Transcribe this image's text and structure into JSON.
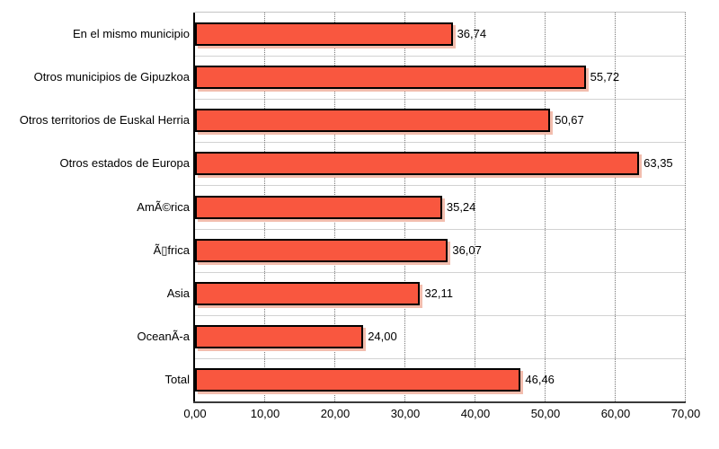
{
  "chart_data": {
    "type": "bar",
    "orientation": "horizontal",
    "title": "",
    "xlabel": "",
    "ylabel": "",
    "categories": [
      "En el mismo municipio",
      "Otros municipios de Gipuzkoa",
      "Otros territorios de Euskal Herria",
      "Otros estados de Europa",
      "AmÃ©rica",
      "Ã▯frica",
      "Asia",
      "OceanÃ-a",
      "Total"
    ],
    "values": [
      36.74,
      55.72,
      50.67,
      63.35,
      35.24,
      36.07,
      32.11,
      24.0,
      46.46
    ],
    "value_labels": [
      "36,74",
      "55,72",
      "50,67",
      "63,35",
      "35,24",
      "36,07",
      "32,11",
      "24,00",
      "46,46"
    ],
    "xlim": [
      0,
      70
    ],
    "x_ticks": [
      0,
      10,
      20,
      30,
      40,
      50,
      60,
      70
    ],
    "x_tick_labels": [
      "0,00",
      "10,00",
      "20,00",
      "30,00",
      "40,00",
      "50,00",
      "60,00",
      "70,00"
    ],
    "grid": "vertical-dotted",
    "legend": "none",
    "colors": {
      "bar_fill": "#F9573F",
      "bar_border": "#000000",
      "bar_shadow": "#F2BDAE",
      "gridline": "#777777",
      "category_separator": "#D2D2D2",
      "plot_top_border": "#C4C4C4",
      "y_axis_line": "#000000",
      "x_axis_line": "#3A3A3A",
      "text": "#000000",
      "background": "#FFFFFF"
    }
  }
}
